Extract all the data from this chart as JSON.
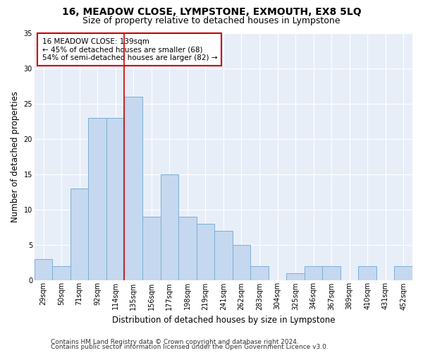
{
  "title": "16, MEADOW CLOSE, LYMPSTONE, EXMOUTH, EX8 5LQ",
  "subtitle": "Size of property relative to detached houses in Lympstone",
  "xlabel": "Distribution of detached houses by size in Lympstone",
  "ylabel": "Number of detached properties",
  "categories": [
    "29sqm",
    "50sqm",
    "71sqm",
    "92sqm",
    "114sqm",
    "135sqm",
    "156sqm",
    "177sqm",
    "198sqm",
    "219sqm",
    "241sqm",
    "262sqm",
    "283sqm",
    "304sqm",
    "325sqm",
    "346sqm",
    "367sqm",
    "389sqm",
    "410sqm",
    "431sqm",
    "452sqm"
  ],
  "values": [
    3,
    2,
    13,
    23,
    23,
    26,
    9,
    15,
    9,
    8,
    7,
    5,
    2,
    0,
    1,
    2,
    2,
    0,
    2,
    0,
    2
  ],
  "bar_color": "#c5d8ef",
  "bar_edge_color": "#7bafd4",
  "vline_color": "#cc0000",
  "vline_x_index": 5,
  "annotation_text": "16 MEADOW CLOSE: 139sqm\n← 45% of detached houses are smaller (68)\n54% of semi-detached houses are larger (82) →",
  "annotation_box_color": "white",
  "annotation_box_edge": "#cc0000",
  "ylim": [
    0,
    35
  ],
  "yticks": [
    0,
    5,
    10,
    15,
    20,
    25,
    30,
    35
  ],
  "background_color": "#e8eef8",
  "grid_color": "white",
  "footer1": "Contains HM Land Registry data © Crown copyright and database right 2024.",
  "footer2": "Contains public sector information licensed under the Open Government Licence v3.0.",
  "title_fontsize": 10,
  "subtitle_fontsize": 9,
  "axis_label_fontsize": 8.5,
  "tick_fontsize": 7,
  "annotation_fontsize": 7.5,
  "footer_fontsize": 6.5
}
